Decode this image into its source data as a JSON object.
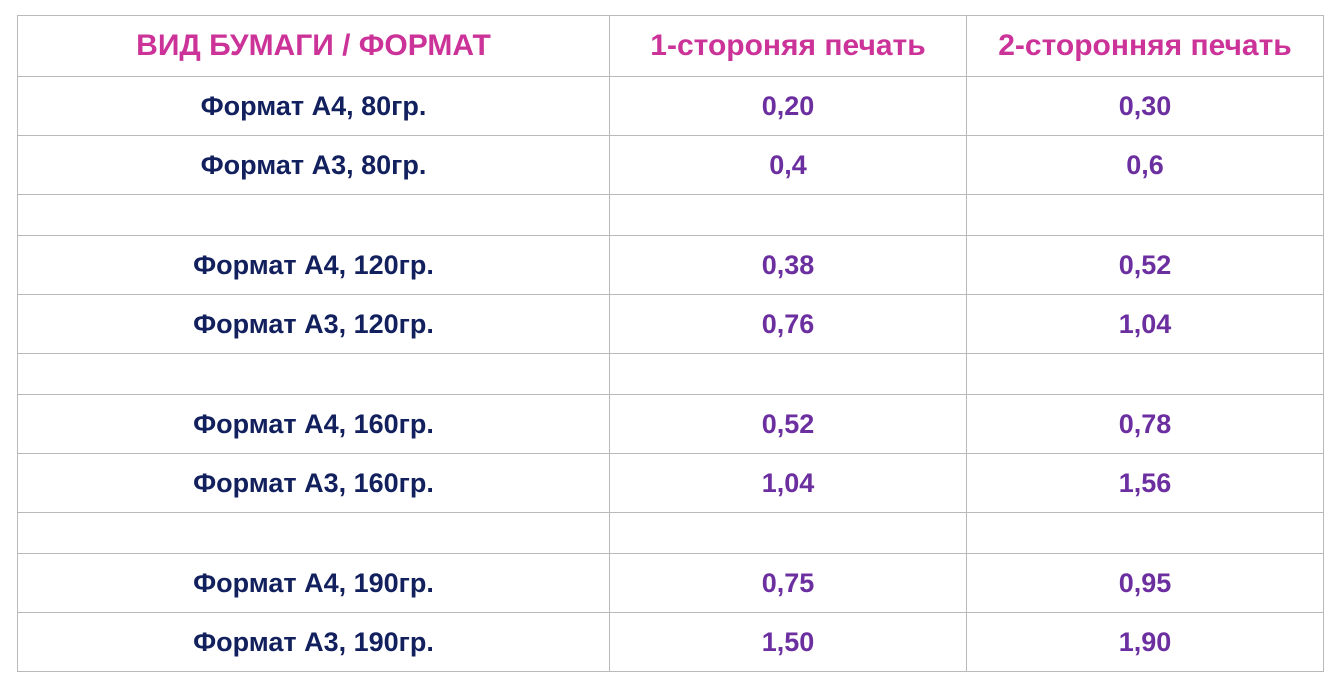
{
  "table": {
    "headers": {
      "type": "ВИД БУМАГИ / ФОРМАТ",
      "one_side": "1-стороняя печать",
      "two_side": "2-сторонняя печать"
    },
    "rows": [
      {
        "name": "Формат А4, 80гр.",
        "one_side": "0,20",
        "two_side": "0,30"
      },
      {
        "name": "Формат А3, 80гр.",
        "one_side": "0,4",
        "two_side": "0,6"
      },
      {
        "name": "",
        "one_side": "",
        "two_side": ""
      },
      {
        "name": "Формат А4, 120гр.",
        "one_side": "0,38",
        "two_side": "0,52"
      },
      {
        "name": "Формат А3, 120гр.",
        "one_side": "0,76",
        "two_side": "1,04"
      },
      {
        "name": "",
        "one_side": "",
        "two_side": ""
      },
      {
        "name": "Формат А4, 160гр.",
        "one_side": "0,52",
        "two_side": "0,78"
      },
      {
        "name": "Формат А3, 160гр.",
        "one_side": "1,04",
        "two_side": "1,56"
      },
      {
        "name": "",
        "one_side": "",
        "two_side": ""
      },
      {
        "name": "Формат А4, 190гр.",
        "one_side": "0,75",
        "two_side": "0,95"
      },
      {
        "name": "Формат А3, 190гр.",
        "one_side": "1,50",
        "two_side": "1,90"
      }
    ]
  },
  "colors": {
    "header_text": "#cc3399",
    "name_text": "#12205e",
    "value_text": "#6c2fa0",
    "border": "#b9b9b9"
  }
}
